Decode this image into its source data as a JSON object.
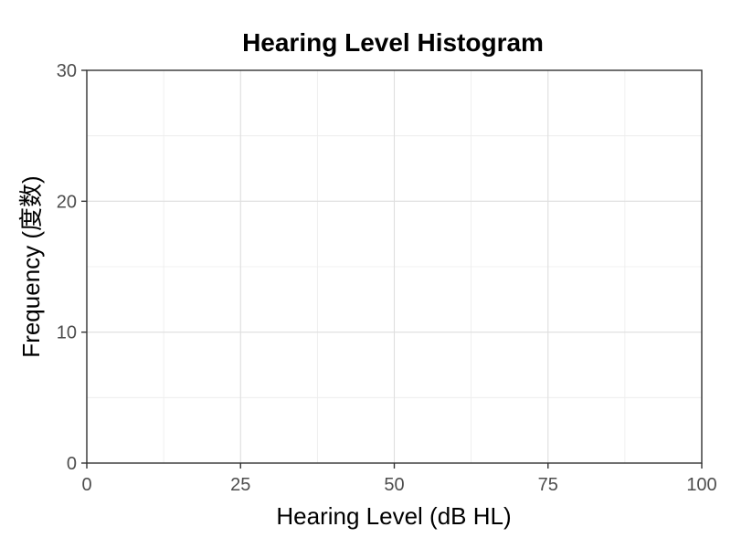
{
  "chart_data": {
    "type": "bar",
    "title": "Hearing Level Histogram",
    "xlabel": "Hearing Level (dB HL)",
    "ylabel": "Frequency (度数)",
    "xlim": [
      0,
      100
    ],
    "ylim": [
      0,
      30
    ],
    "x_ticks": [
      0,
      25,
      50,
      75,
      100
    ],
    "x_tick_labels": [
      "0",
      "25",
      "50",
      "75",
      "100"
    ],
    "y_ticks": [
      0,
      10,
      20,
      30
    ],
    "y_tick_labels": [
      "0",
      "10",
      "20",
      "30"
    ],
    "grid": true,
    "bins": [],
    "values": []
  }
}
